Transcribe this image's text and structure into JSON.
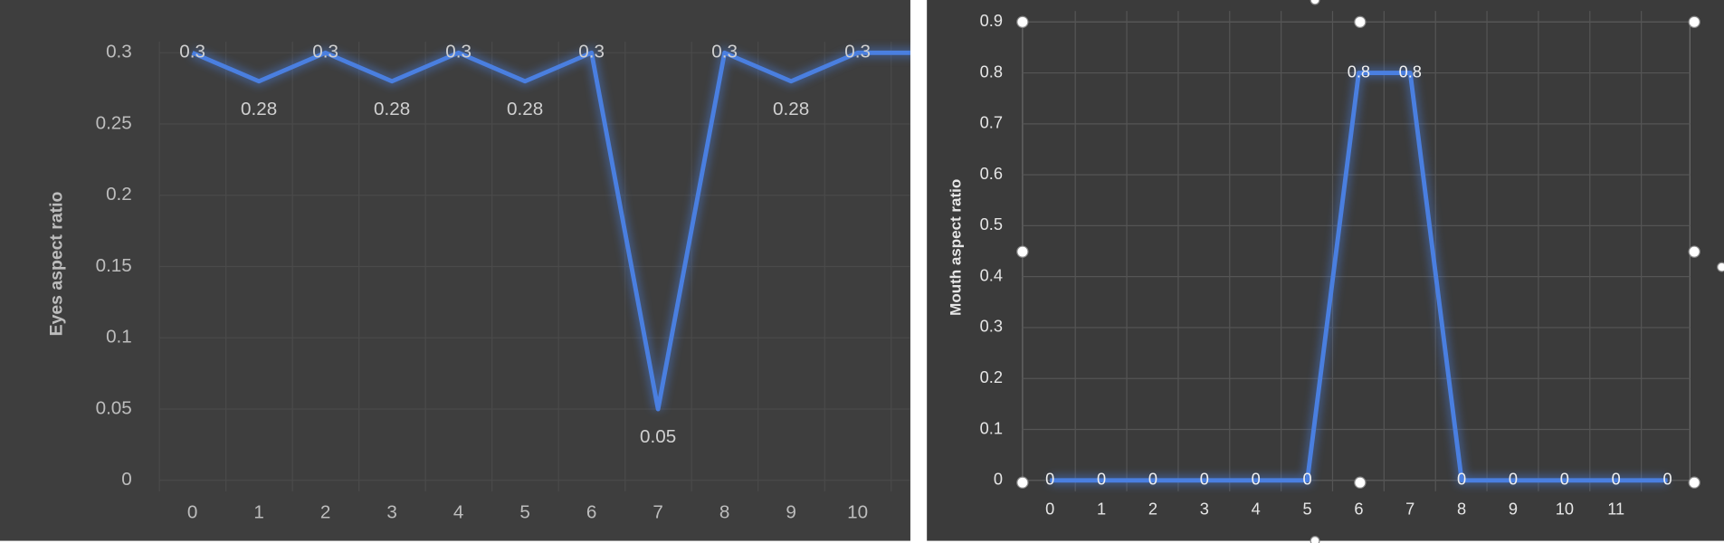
{
  "chart_data": [
    {
      "type": "line",
      "ylabel": "Eyes aspect ratio",
      "categories": [
        "0",
        "1",
        "2",
        "3",
        "4",
        "5",
        "6",
        "7",
        "8",
        "9",
        "10",
        null
      ],
      "values": [
        0.3,
        0.28,
        0.3,
        0.28,
        0.3,
        0.28,
        0.3,
        0.05,
        0.3,
        0.28,
        0.3,
        0.3
      ],
      "color": "#4a7fe0",
      "ylim": [
        0,
        0.3
      ],
      "yticks": [
        0,
        0.05,
        0.1,
        0.15,
        0.2,
        0.25,
        0.3
      ],
      "grid": true
    },
    {
      "type": "line",
      "ylabel": "Mouth  aspect ratio",
      "categories": [
        "0",
        "1",
        "2",
        "3",
        "4",
        "5",
        "6",
        "7",
        "8",
        "9",
        "10",
        "11",
        null
      ],
      "values": [
        0,
        0,
        0,
        0,
        0,
        0,
        0.8,
        0.8,
        0,
        0,
        0,
        0,
        0
      ],
      "color": "#4a7fe0",
      "ylim": [
        0,
        0.9
      ],
      "yticks": [
        0,
        0.1,
        0.2,
        0.3,
        0.4,
        0.5,
        0.6,
        0.7,
        0.8,
        0.9
      ],
      "grid": true
    }
  ]
}
